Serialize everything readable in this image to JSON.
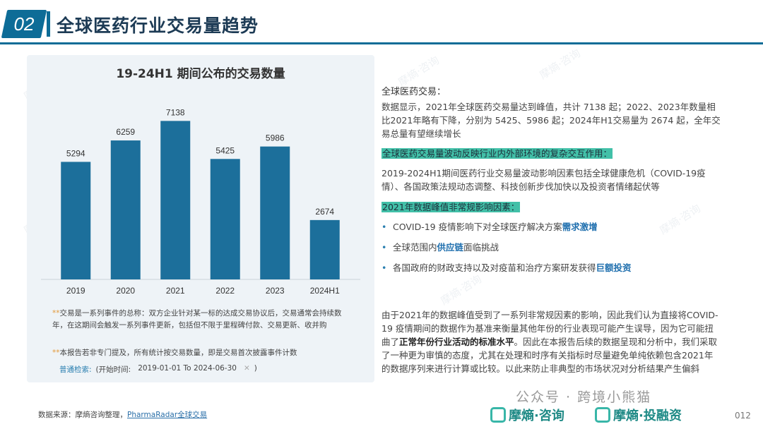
{
  "header": {
    "section_number": "02",
    "title": "全球医药行业交易量趋势"
  },
  "watermark": "摩熵·咨询",
  "chart_data": {
    "type": "bar",
    "title": "19-24H1 期间公布的交易数量",
    "categories": [
      "2019",
      "2020",
      "2021",
      "2022",
      "2023",
      "2024H1"
    ],
    "values": [
      5294,
      6259,
      7138,
      5425,
      5986,
      2674
    ],
    "ylim": [
      0,
      7500
    ],
    "bar_color": "#1c6f9b",
    "grid": false,
    "xlabel": "",
    "ylabel": ""
  },
  "notes": {
    "note1_star": "**",
    "note1": "交易是一系列事件的总称：双方企业针对某一标的达成交易协议后，交易通常会持续数年，在这期间会触发一系列事件更新，包括但不限于里程碑付款、交易更新、收并购",
    "note2_star": "**",
    "note2": "本报告若非专门提及，所有统计按交易数量，即是交易首次披露事件计数",
    "search_label": "普通检索:",
    "search_prefix": "(开始时间:",
    "search_value": "2019-01-01 To 2024-06-30",
    "search_clear": "✕",
    "search_suffix": ")"
  },
  "source": {
    "prefix": "数据来源：摩熵咨询整理，",
    "link": "PharmaRadar全球交易"
  },
  "right": {
    "h1": "全球医药交易：",
    "p1": "数据显示，2021年全球医药交易量达到峰值，共计 7138 起；2022、2023年数量相比2021年略有下降，分别为 5425、5986 起；2024年H1交易量为 2674 起，全年交易总量有望继续增长",
    "h2": "全球医药交易量波动反映行业内外部环境的复杂交互作用：",
    "p2": "2019-2024H1期间医药行业交易量波动影响因素包括全球健康危机（COVID-19疫情）、各国政策法规动态调整、科技创新步伐加快以及投资者情绪起伏等",
    "h3": "2021年数据峰值非常规影响因素：",
    "b1_a": "COVID-19 疫情影响下对全球医疗解决方案",
    "b1_em": "需求激增",
    "b2_a": "全球范围内",
    "b2_em": "供应链",
    "b2_b": "面临挑战",
    "b3_a": "各国政府的财政支持以及对疫苗和治疗方案研发获得",
    "b3_em": "巨额投资",
    "p3_a": "由于2021年的数据峰值受到了一系列非常规因素的影响，因此我们认为直接将COVID-19 疫情期间的数据作为基准来衡量其他年份的行业表现可能产生误导，因为它可能扭曲了",
    "p3_b": "正常年份行业活动的标准水平",
    "p3_c": "。因此在本报告后续的数据呈现和分析中，我们采取了一种更为审慎的态度，尤其在处理和时序有关指标时尽量避免单纯依赖包含2021年的数据序列来进行计算或比较。以此来防止非典型的市场状况对分析结果产生偏斜"
  },
  "footer": {
    "wechat": "公众号 · 跨境小熊猫",
    "logo1": "摩熵·咨询",
    "logo2": "摩熵·投融资",
    "page": "012"
  }
}
